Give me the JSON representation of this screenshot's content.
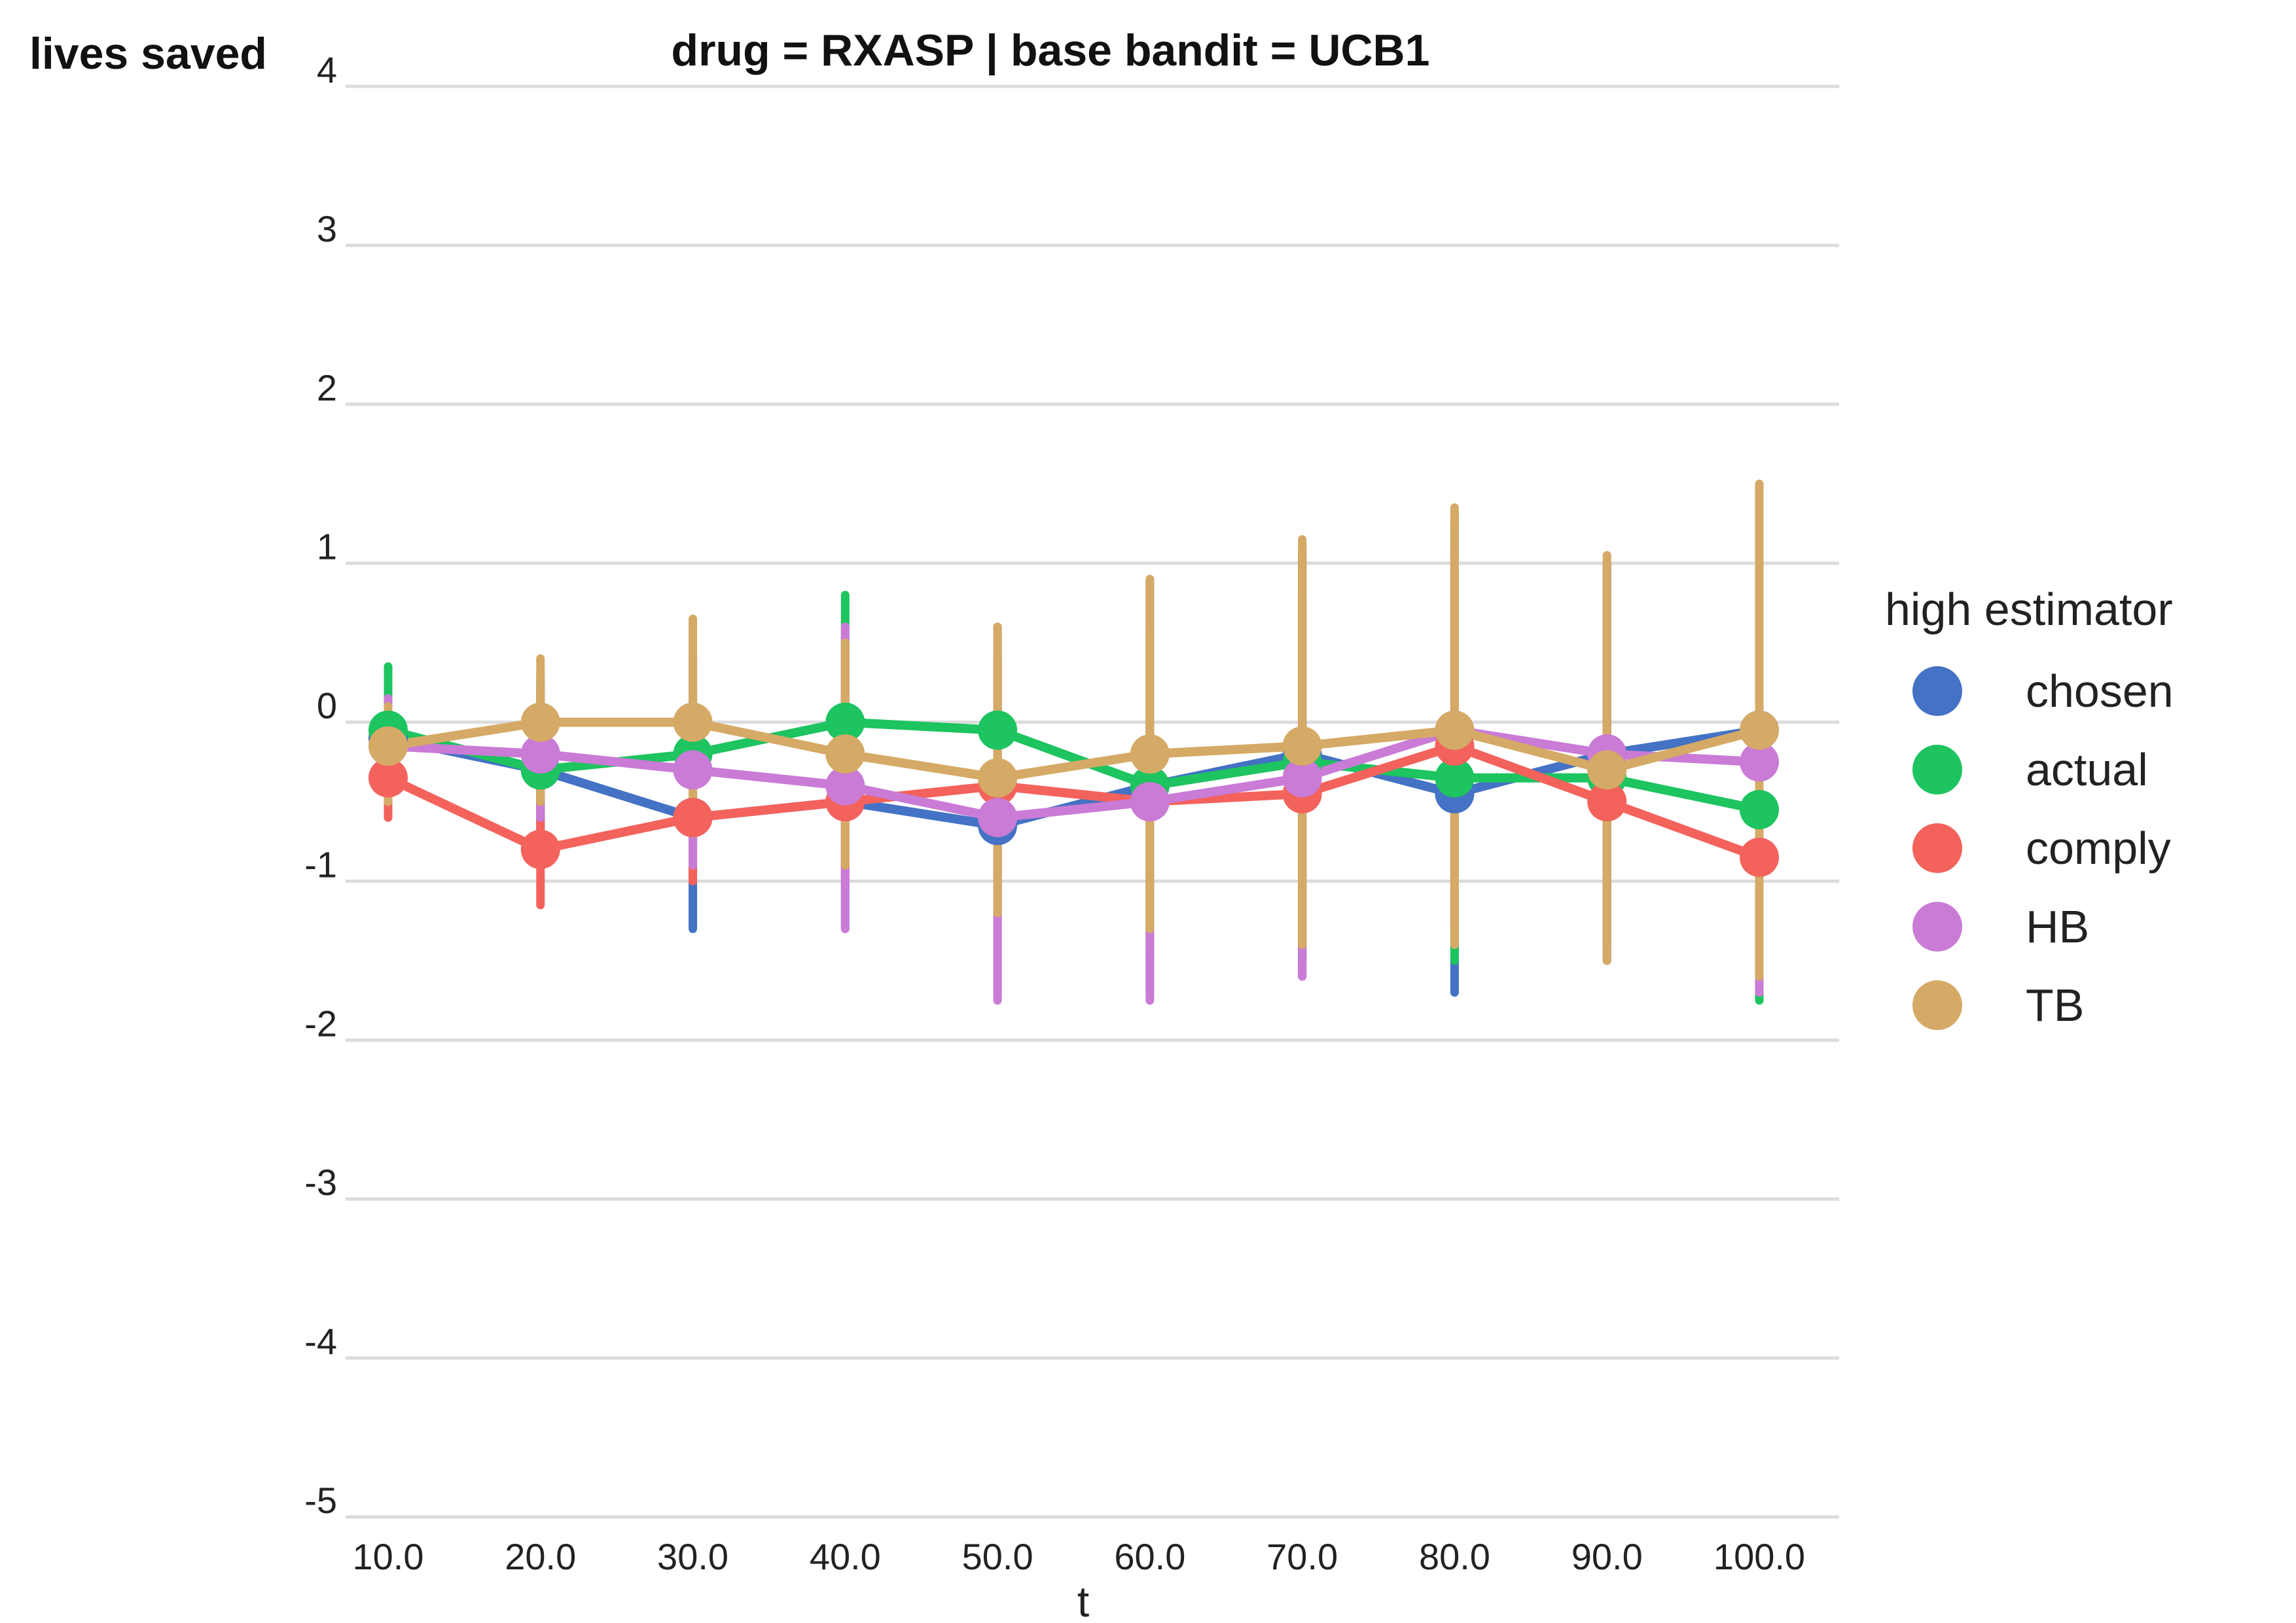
{
  "chart_data": {
    "type": "line",
    "title": "drug = RXASP | base bandit = UCB1",
    "ylabel": "lives saved",
    "xlabel": "t",
    "x": [
      10.0,
      20.0,
      30.0,
      40.0,
      50.0,
      60.0,
      70.0,
      80.0,
      90.0,
      100.0
    ],
    "x_tick_labels": [
      "10.0",
      "20.0",
      "30.0",
      "40.0",
      "50.0",
      "60.0",
      "70.0",
      "80.0",
      "90.0",
      "100.0"
    ],
    "ylim": [
      -5,
      4
    ],
    "y_ticks": [
      4,
      3,
      2,
      1,
      0,
      -1,
      -2,
      -3,
      -4,
      -5
    ],
    "y_tick_labels": [
      "4",
      "3",
      "2",
      "1",
      "0",
      "-1",
      "-2",
      "-3",
      "-4",
      "-5"
    ],
    "grid": "horizontal",
    "legend": {
      "title": "high estimator",
      "placement": "right"
    },
    "series": [
      {
        "name": "chosen",
        "color": "#4472c4",
        "values": [
          -0.1,
          -0.3,
          -0.6,
          -0.5,
          -0.65,
          -0.4,
          -0.2,
          -0.45,
          -0.2,
          -0.05
        ],
        "low": [
          -0.4,
          -0.7,
          -1.3,
          -1.3,
          -1.7,
          -1.7,
          -1.6,
          -1.7,
          -1.5,
          -1.7
        ],
        "high": [
          0.2,
          0.3,
          0.4,
          0.5,
          0.4,
          0.9,
          1.1,
          1.3,
          1.0,
          1.4
        ]
      },
      {
        "name": "actual",
        "color": "#1dc45f",
        "values": [
          -0.05,
          -0.3,
          -0.2,
          0.0,
          -0.05,
          -0.4,
          -0.25,
          -0.35,
          -0.35,
          -0.55
        ],
        "low": [
          -0.4,
          -0.6,
          -0.8,
          -0.8,
          -1.0,
          -1.5,
          -1.5,
          -1.5,
          -1.4,
          -1.75
        ],
        "high": [
          0.35,
          0.25,
          0.4,
          0.8,
          0.6,
          0.6,
          1.0,
          1.2,
          1.0,
          1.1
        ]
      },
      {
        "name": "comply",
        "color": "#f4625c",
        "values": [
          -0.35,
          -0.8,
          -0.6,
          -0.5,
          -0.4,
          -0.5,
          -0.45,
          -0.15,
          -0.5,
          -0.85
        ],
        "low": [
          -0.6,
          -1.15,
          -1.0,
          -1.0,
          -1.2,
          -1.4,
          -1.4,
          -1.3,
          -1.4,
          -1.7
        ],
        "high": [
          0.0,
          0.0,
          0.2,
          0.2,
          0.4,
          0.6,
          0.8,
          1.1,
          0.8,
          0.9
        ]
      },
      {
        "name": "HB",
        "color": "#c97bd6",
        "values": [
          -0.15,
          -0.2,
          -0.3,
          -0.4,
          -0.6,
          -0.5,
          -0.35,
          -0.05,
          -0.2,
          -0.25
        ],
        "low": [
          -0.4,
          -0.6,
          -0.9,
          -1.3,
          -1.75,
          -1.75,
          -1.6,
          -1.3,
          -1.5,
          -1.7
        ],
        "high": [
          0.15,
          0.2,
          0.4,
          0.6,
          0.6,
          0.9,
          1.1,
          1.3,
          1.0,
          1.3
        ]
      },
      {
        "name": "TB",
        "color": "#d5aa66",
        "values": [
          -0.15,
          0.0,
          0.0,
          -0.2,
          -0.35,
          -0.2,
          -0.15,
          -0.05,
          -0.3,
          -0.05
        ],
        "low": [
          -0.5,
          -0.5,
          -0.7,
          -0.9,
          -1.2,
          -1.3,
          -1.4,
          -1.4,
          -1.5,
          -1.6
        ],
        "high": [
          0.1,
          0.4,
          0.65,
          0.5,
          0.6,
          0.9,
          1.15,
          1.35,
          1.05,
          1.5
        ]
      }
    ]
  }
}
